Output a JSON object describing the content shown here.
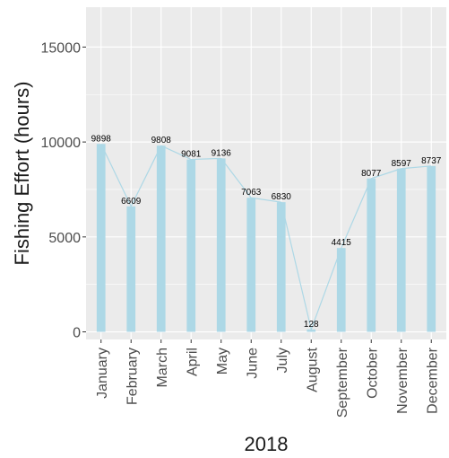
{
  "chart_data": {
    "type": "bar",
    "xlabel": "2018",
    "ylabel": "Fishing Effort (hours)",
    "categories": [
      "January",
      "February",
      "March",
      "April",
      "May",
      "June",
      "July",
      "August",
      "September",
      "October",
      "November",
      "December"
    ],
    "values": [
      9898,
      6609,
      9808,
      9081,
      9136,
      7063,
      6830,
      128,
      4415,
      8077,
      8597,
      8737
    ],
    "data_labels": [
      "9898",
      "6609",
      "9808",
      "9081",
      "9136",
      "7063",
      "6830",
      "128",
      "4415",
      "8077",
      "8597",
      "8737"
    ],
    "yticks": [
      0,
      5000,
      10000,
      15000
    ],
    "ytick_labels": [
      "0",
      "5000",
      "10000",
      "15000"
    ],
    "ylim": [
      -400,
      17100
    ],
    "grid": true,
    "legend": "none",
    "overlay": "line through bar tops",
    "colors": {
      "bar": "#add8e6",
      "line": "#add8e6",
      "panel": "#ebebeb",
      "grid": "#ffffff"
    }
  }
}
